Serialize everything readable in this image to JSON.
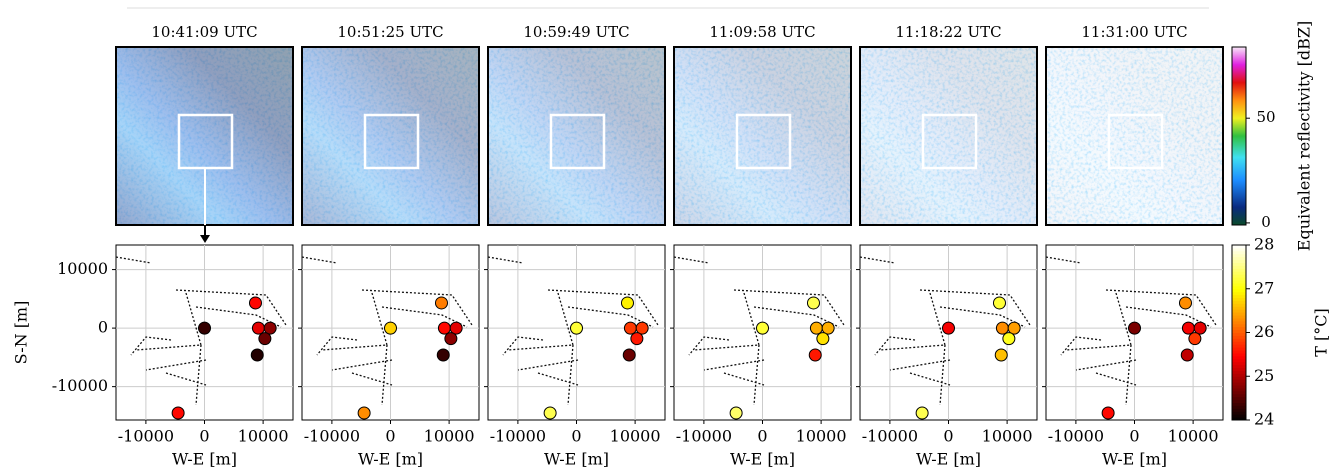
{
  "chart_data": [
    {
      "type": "scatter",
      "title": "10:41:09 UTC",
      "xlabel": "W-E [m]",
      "ylabel": "S-N [m]",
      "x": [
        8700,
        0,
        9200,
        11200,
        10300,
        9000,
        -4500
      ],
      "y": [
        4300,
        0,
        0,
        0,
        -1800,
        -4600,
        -14500
      ],
      "values": [
        25.5,
        24.3,
        25.3,
        24.8,
        24.6,
        24.2,
        25.5
      ],
      "xlim": [
        -15100,
        15100
      ],
      "ylim": [
        -15700,
        14200
      ],
      "xticks": [
        -10000,
        0,
        10000
      ],
      "yticks": [
        -10000,
        0,
        10000
      ],
      "grid": true,
      "colormap": "hot"
    },
    {
      "type": "scatter",
      "title": "10:51:25 UTC",
      "xlabel": "W-E [m]",
      "x": [
        8700,
        0,
        9200,
        11200,
        10300,
        9000,
        -4500
      ],
      "y": [
        4300,
        0,
        0,
        0,
        -1800,
        -4600,
        -14500
      ],
      "values": [
        26.2,
        26.7,
        25.5,
        25.3,
        24.8,
        24.3,
        26.3
      ],
      "xlim": [
        -15100,
        15100
      ],
      "ylim": [
        -15700,
        14200
      ],
      "xticks": [
        -10000,
        0,
        10000
      ],
      "yticks": [
        -10000,
        0,
        10000
      ],
      "grid": true,
      "colormap": "hot"
    },
    {
      "type": "scatter",
      "title": "10:59:49 UTC",
      "xlabel": "W-E [m]",
      "x": [
        8700,
        0,
        9200,
        11200,
        10300,
        9000,
        -4500
      ],
      "y": [
        4300,
        0,
        0,
        0,
        -1800,
        -4600,
        -14500
      ],
      "values": [
        26.9,
        27.2,
        25.8,
        25.8,
        25.6,
        24.6,
        27.3
      ],
      "xlim": [
        -15100,
        15100
      ],
      "ylim": [
        -15700,
        14200
      ],
      "xticks": [
        -10000,
        0,
        10000
      ],
      "yticks": [
        -10000,
        0,
        10000
      ],
      "grid": true,
      "colormap": "hot"
    },
    {
      "type": "scatter",
      "title": "11:09:58 UTC",
      "xlabel": "W-E [m]",
      "x": [
        8700,
        0,
        9200,
        11200,
        10300,
        9000,
        -4500
      ],
      "y": [
        4300,
        0,
        0,
        0,
        -1800,
        -4600,
        -14500
      ],
      "values": [
        27.3,
        27.2,
        26.5,
        26.5,
        26.8,
        25.6,
        27.4
      ],
      "xlim": [
        -15100,
        15100
      ],
      "ylim": [
        -15700,
        14200
      ],
      "xticks": [
        -10000,
        0,
        10000
      ],
      "yticks": [
        -10000,
        0,
        10000
      ],
      "grid": true,
      "colormap": "hot"
    },
    {
      "type": "scatter",
      "title": "11:18:22 UTC",
      "xlabel": "W-E [m]",
      "x": [
        8700,
        0,
        9200,
        11200,
        10300,
        9000,
        -4500
      ],
      "y": [
        4300,
        0,
        0,
        0,
        -1800,
        -4600,
        -14500
      ],
      "values": [
        27.2,
        25.4,
        26.3,
        26.4,
        27.1,
        26.6,
        27.3
      ],
      "xlim": [
        -15100,
        15100
      ],
      "ylim": [
        -15700,
        14200
      ],
      "xticks": [
        -10000,
        0,
        10000
      ],
      "yticks": [
        -10000,
        0,
        10000
      ],
      "grid": true,
      "colormap": "hot"
    },
    {
      "type": "scatter",
      "title": "11:31:00 UTC",
      "xlabel": "W-E [m]",
      "x": [
        8700,
        0,
        9200,
        11200,
        10300,
        9000,
        -4500
      ],
      "y": [
        4300,
        0,
        0,
        0,
        -1800,
        -4600,
        -14500
      ],
      "values": [
        26.3,
        24.7,
        25.4,
        25.3,
        25.8,
        25.1,
        25.5
      ],
      "xlim": [
        -15100,
        15100
      ],
      "ylim": [
        -15700,
        14200
      ],
      "xticks": [
        -10000,
        0,
        10000
      ],
      "yticks": [
        -10000,
        0,
        10000
      ],
      "grid": true,
      "colormap": "hot"
    }
  ],
  "colorbars": {
    "reflectivity": {
      "label": "Equivalent reflectivity [dBZ]",
      "lim": [
        -1,
        84
      ],
      "ticks": [
        0,
        50
      ]
    },
    "temperature": {
      "label": "T [°C]",
      "lim": [
        24,
        28
      ],
      "ticks": [
        24,
        25,
        26,
        27,
        28
      ],
      "colormap": "hot"
    }
  }
}
